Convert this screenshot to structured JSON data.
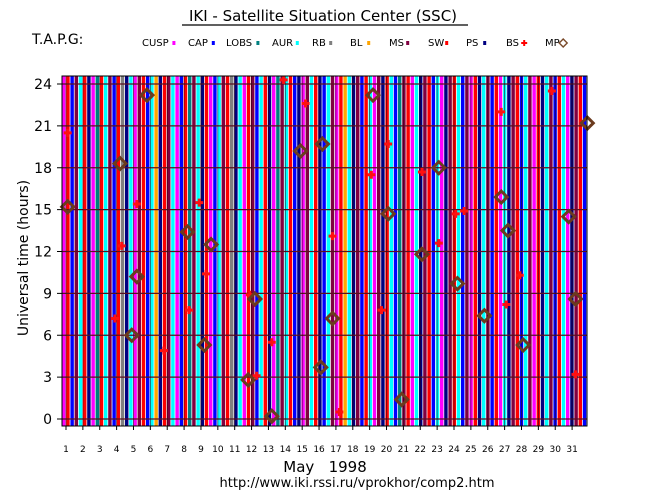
{
  "chart_data": {
    "type": "scatter",
    "title": "IKI - Satellite Situation Center (SSC)",
    "satellite_label": "T.A.P.G:",
    "xlabel": "May   1998",
    "ylabel": "Universal time (hours)",
    "footer": "http://www.iki.rssi.ru/vprokhor/comp2.htm",
    "xlim": [
      1,
      31.6
    ],
    "ylim": [
      0,
      24
    ],
    "xticks": [
      "1",
      "2",
      "3",
      "4",
      "5",
      "6",
      "7",
      "8",
      "9",
      "10",
      "11",
      "12",
      "13",
      "14",
      "15",
      "16",
      "17",
      "18",
      "19",
      "20",
      "21",
      "22",
      "23",
      "24",
      "25",
      "26",
      "27",
      "28",
      "29",
      "30",
      "31"
    ],
    "yticks": [
      "0",
      "3",
      "6",
      "9",
      "12",
      "15",
      "18",
      "21",
      "24"
    ],
    "grid": true,
    "legend_position": "top",
    "legend": [
      {
        "name": "CUSP",
        "color": "#ff00ff",
        "marker": "bar"
      },
      {
        "name": "CAP",
        "color": "#0000ff",
        "marker": "bar"
      },
      {
        "name": "LOBS",
        "color": "#008080",
        "marker": "bar"
      },
      {
        "name": "AUR",
        "color": "#00ffff",
        "marker": "bar"
      },
      {
        "name": "RB",
        "color": "#808080",
        "marker": "bar"
      },
      {
        "name": "BL",
        "color": "#ffa500",
        "marker": "bar"
      },
      {
        "name": "MS",
        "color": "#800040",
        "marker": "bar"
      },
      {
        "name": "SW",
        "color": "#ff0000",
        "marker": "bar"
      },
      {
        "name": "PS",
        "color": "#000080",
        "marker": "bar"
      },
      {
        "name": "BS",
        "color": "#ff0000",
        "marker": "cross"
      },
      {
        "name": "MP",
        "color": "#7a4a2a",
        "marker": "diamond"
      }
    ],
    "region_sequence": [
      "CUSP",
      "SW",
      "CAP",
      "MS",
      "AUR",
      "SW",
      "PS",
      "CUSP",
      "LOBS",
      "SW",
      "AUR",
      "MS",
      "CAP",
      "SW",
      "RB",
      "PS",
      "AUR",
      "CUSP",
      "MS",
      "SW",
      "CAP",
      "AUR",
      "BL",
      "PS",
      "SW",
      "MS",
      "AUR",
      "CUSP",
      "CAP",
      "SW",
      "LOBS",
      "MS",
      "AUR",
      "PS",
      "SW",
      "CUSP",
      "CAP",
      "AUR",
      "MS",
      "SW",
      "RB",
      "PS",
      "AUR",
      "CUSP",
      "SW",
      "MS",
      "CAP",
      "AUR",
      "SW",
      "PS",
      "CUSP",
      "LOBS",
      "MS",
      "AUR",
      "SW",
      "CAP",
      "PS",
      "CUSP",
      "MS",
      "AUR",
      "SW",
      "PS",
      "CAP",
      "AUR",
      "MS",
      "CUSP",
      "SW",
      "BL",
      "AUR",
      "PS",
      "MS",
      "CAP",
      "SW",
      "AUR",
      "CUSP",
      "MS",
      "PS",
      "SW",
      "AUR",
      "CAP",
      "LOBS",
      "MS",
      "SW",
      "CUSP",
      "AUR",
      "PS",
      "MS",
      "SW",
      "CAP",
      "AUR",
      "CUSP",
      "PS",
      "MS",
      "SW",
      "AUR",
      "CAP",
      "MS",
      "CUSP",
      "SW",
      "PS",
      "AUR",
      "MS",
      "CAP",
      "SW",
      "CUSP",
      "AUR",
      "PS",
      "MS",
      "SW",
      "CAP",
      "AUR",
      "MS",
      "CUSP",
      "SW",
      "PS",
      "AUR",
      "MS",
      "CAP",
      "SW",
      "AUR",
      "CUSP",
      "PS",
      "MS",
      "SW",
      "CAP"
    ],
    "bow_shock_crossings": [
      {
        "x": 1.1,
        "y": 20.5
      },
      {
        "x": 3.9,
        "y": 7.2
      },
      {
        "x": 4.3,
        "y": 12.4
      },
      {
        "x": 5.2,
        "y": 15.4
      },
      {
        "x": 6.8,
        "y": 4.9
      },
      {
        "x": 8.3,
        "y": 7.8
      },
      {
        "x": 8.9,
        "y": 15.5
      },
      {
        "x": 9.3,
        "y": 10.4
      },
      {
        "x": 11.9,
        "y": 8.9
      },
      {
        "x": 12.3,
        "y": 3.1
      },
      {
        "x": 13.2,
        "y": 5.5
      },
      {
        "x": 13.9,
        "y": 24.3
      },
      {
        "x": 15.2,
        "y": 22.6
      },
      {
        "x": 16.8,
        "y": 13.1
      },
      {
        "x": 17.2,
        "y": 0.5
      },
      {
        "x": 19.1,
        "y": 17.5
      },
      {
        "x": 19.7,
        "y": 7.8
      },
      {
        "x": 20.1,
        "y": 19.7
      },
      {
        "x": 22.1,
        "y": 17.7
      },
      {
        "x": 23.1,
        "y": 12.6
      },
      {
        "x": 24.1,
        "y": 14.7
      },
      {
        "x": 24.6,
        "y": 14.9
      },
      {
        "x": 26.8,
        "y": 22.0
      },
      {
        "x": 27.1,
        "y": 8.2
      },
      {
        "x": 27.9,
        "y": 10.3
      },
      {
        "x": 29.8,
        "y": 23.5
      },
      {
        "x": 31.2,
        "y": 3.2
      }
    ],
    "magnetopause_crossings": [
      {
        "x": 1.1,
        "y": 15.2
      },
      {
        "x": 4.2,
        "y": 18.3
      },
      {
        "x": 4.9,
        "y": 6.0
      },
      {
        "x": 5.2,
        "y": 10.2
      },
      {
        "x": 5.8,
        "y": 23.2
      },
      {
        "x": 8.2,
        "y": 13.4
      },
      {
        "x": 9.2,
        "y": 5.3
      },
      {
        "x": 9.6,
        "y": 12.5
      },
      {
        "x": 11.8,
        "y": 2.8
      },
      {
        "x": 12.2,
        "y": 8.6
      },
      {
        "x": 13.2,
        "y": 0.2
      },
      {
        "x": 14.9,
        "y": 19.2
      },
      {
        "x": 16.1,
        "y": 3.7
      },
      {
        "x": 16.2,
        "y": 19.7
      },
      {
        "x": 16.8,
        "y": 7.2
      },
      {
        "x": 19.2,
        "y": 23.2
      },
      {
        "x": 20.1,
        "y": 14.7
      },
      {
        "x": 20.9,
        "y": 1.4
      },
      {
        "x": 22.1,
        "y": 11.8
      },
      {
        "x": 23.1,
        "y": 18.0
      },
      {
        "x": 24.2,
        "y": 9.7
      },
      {
        "x": 25.8,
        "y": 7.4
      },
      {
        "x": 26.8,
        "y": 15.9
      },
      {
        "x": 27.2,
        "y": 13.5
      },
      {
        "x": 28.1,
        "y": 5.3
      },
      {
        "x": 30.8,
        "y": 14.5
      },
      {
        "x": 31.2,
        "y": 8.6
      },
      {
        "x": 31.9,
        "y": 21.2
      }
    ]
  }
}
